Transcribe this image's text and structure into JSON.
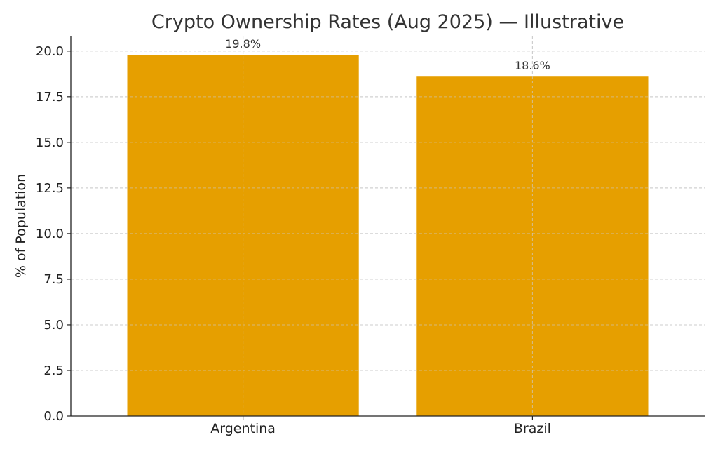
{
  "chart_data": {
    "type": "bar",
    "title": "Crypto Ownership Rates (Aug 2025) — Illustrative",
    "xlabel": "",
    "ylabel": "% of Population",
    "categories": [
      "Argentina",
      "Brazil"
    ],
    "values": [
      19.8,
      18.6
    ],
    "data_labels": [
      "19.8%",
      "18.6%"
    ],
    "ylim": [
      0,
      20.8
    ],
    "yticks": [
      0,
      2.5,
      5,
      7.5,
      10,
      12.5,
      15,
      17.5,
      20
    ],
    "ytick_labels": [
      "0.0",
      "2.5",
      "5.0",
      "7.5",
      "10.0",
      "12.5",
      "15.0",
      "17.5",
      "20.0"
    ],
    "grid": true,
    "bar_color": "#E69F00"
  }
}
